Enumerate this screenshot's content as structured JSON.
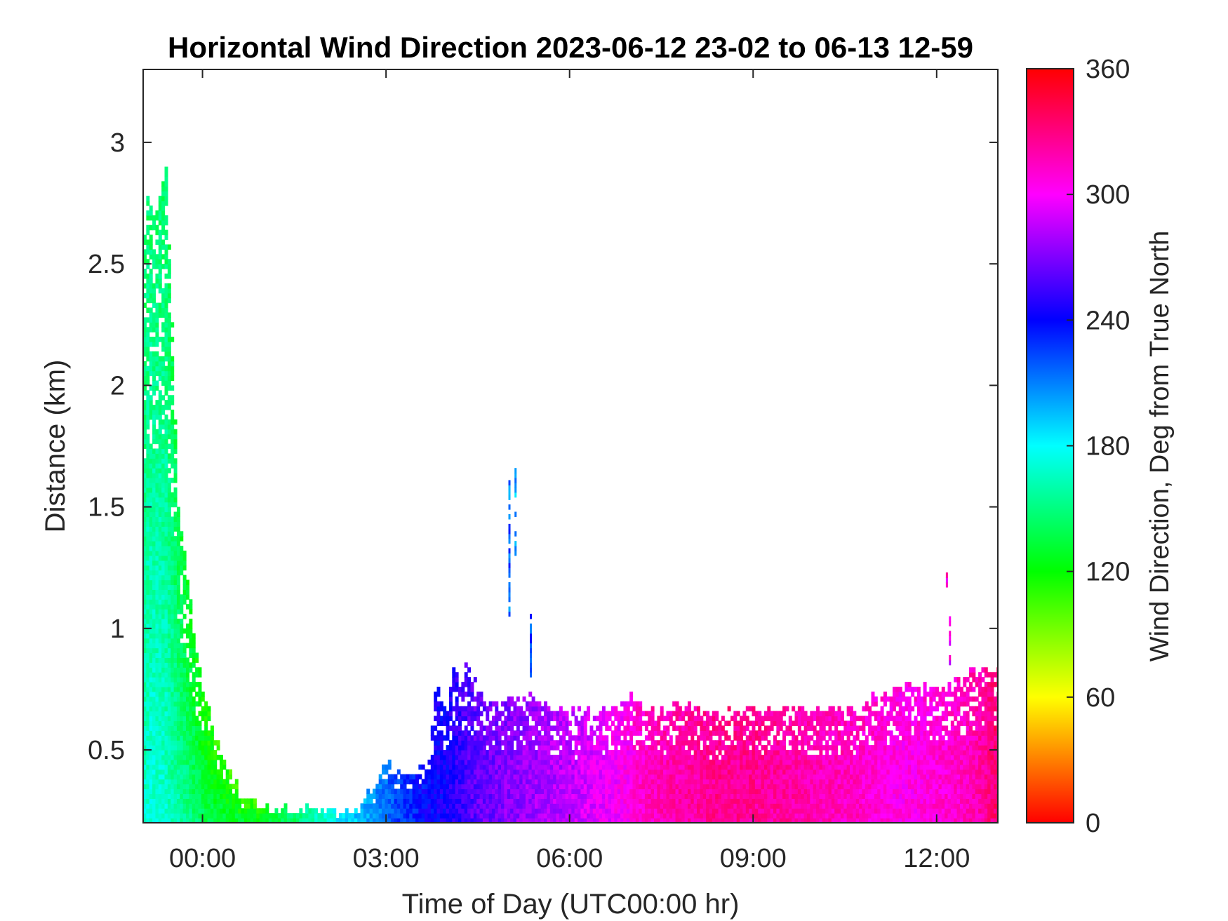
{
  "chart_data": {
    "type": "heatmap",
    "title": "Horizontal Wind Direction 2023-06-12 23-02 to 06-13 12-59",
    "xlabel": "Time of Day (UTC00:00 hr)",
    "ylabel": "Distance (km)",
    "xlim_hours": [
      -0.97,
      13.0
    ],
    "ylim_km": [
      0.2,
      3.3
    ],
    "x_ticks": [
      {
        "hour": 0,
        "label": "00:00"
      },
      {
        "hour": 3,
        "label": "03:00"
      },
      {
        "hour": 6,
        "label": "06:00"
      },
      {
        "hour": 9,
        "label": "09:00"
      },
      {
        "hour": 12,
        "label": "12:00"
      }
    ],
    "y_ticks": [
      {
        "km": 0.5,
        "label": "0.5"
      },
      {
        "km": 1,
        "label": "1"
      },
      {
        "km": 1.5,
        "label": "1.5"
      },
      {
        "km": 2,
        "label": "2"
      },
      {
        "km": 2.5,
        "label": "2.5"
      },
      {
        "km": 3,
        "label": "3"
      }
    ],
    "colorbar": {
      "label": "Wind Direction, Deg from True North",
      "min": 0,
      "max": 360,
      "ticks": [
        {
          "value": 0,
          "label": "0"
        },
        {
          "value": 60,
          "label": "60"
        },
        {
          "value": 120,
          "label": "120"
        },
        {
          "value": 180,
          "label": "180"
        },
        {
          "value": 240,
          "label": "240"
        },
        {
          "value": 300,
          "label": "300"
        },
        {
          "value": 360,
          "label": "360"
        }
      ],
      "colormap": [
        "#ff0000",
        "#ffff00",
        "#00ff00",
        "#00ffff",
        "#0000ff",
        "#ff00ff",
        "#ff0000"
      ]
    },
    "grid": false,
    "missing_value_color": "#ffffff",
    "profile": {
      "hour": [
        -0.97,
        -0.9,
        -0.8,
        -0.7,
        -0.6,
        -0.5,
        -0.4,
        -0.3,
        -0.2,
        -0.1,
        0.0,
        0.1,
        0.2,
        0.3,
        0.5,
        0.7,
        0.9,
        1.1,
        1.3,
        1.5,
        1.7,
        2.0,
        2.3,
        2.6,
        2.8,
        3.0,
        3.2,
        3.5,
        3.7,
        3.8,
        4.0,
        4.1,
        4.2,
        4.3,
        4.5,
        4.6,
        4.8,
        5.0,
        5.2,
        5.4,
        5.6,
        5.8,
        6.0,
        6.2,
        6.5,
        6.8,
        7.0,
        7.1,
        7.3,
        7.5,
        7.8,
        8.0,
        8.2,
        8.4,
        8.6,
        9.0,
        9.5,
        10.0,
        10.5,
        10.8,
        11.0,
        11.3,
        11.6,
        11.9,
        12.1,
        12.3,
        12.5,
        12.7,
        12.9,
        13.0
      ],
      "top_km": [
        2.5,
        2.8,
        2.7,
        2.75,
        2.9,
        2.3,
        1.5,
        1.3,
        1.1,
        0.9,
        0.75,
        0.65,
        0.55,
        0.48,
        0.36,
        0.3,
        0.27,
        0.25,
        0.26,
        0.24,
        0.25,
        0.24,
        0.23,
        0.26,
        0.35,
        0.45,
        0.4,
        0.4,
        0.45,
        0.75,
        0.65,
        0.85,
        0.75,
        0.85,
        0.78,
        0.7,
        0.68,
        0.7,
        0.7,
        0.72,
        0.68,
        0.66,
        0.65,
        0.65,
        0.65,
        0.66,
        0.72,
        0.7,
        0.66,
        0.65,
        0.68,
        0.67,
        0.65,
        0.64,
        0.65,
        0.66,
        0.66,
        0.66,
        0.65,
        0.68,
        0.71,
        0.74,
        0.76,
        0.76,
        0.74,
        0.78,
        0.8,
        0.82,
        0.82,
        0.82
      ],
      "dir_deg": [
        165,
        170,
        172,
        170,
        168,
        162,
        160,
        155,
        150,
        145,
        140,
        138,
        136,
        134,
        132,
        130,
        130,
        135,
        140,
        145,
        155,
        170,
        185,
        195,
        205,
        215,
        225,
        235,
        240,
        242,
        245,
        248,
        252,
        258,
        262,
        265,
        268,
        272,
        275,
        278,
        280,
        283,
        285,
        290,
        295,
        300,
        305,
        310,
        315,
        318,
        320,
        322,
        324,
        326,
        326,
        325,
        322,
        318,
        315,
        312,
        310,
        305,
        305,
        308,
        310,
        312,
        315,
        320,
        330,
        335
      ]
    },
    "isolated_streaks": [
      {
        "hour": 5.0,
        "km_from": 1.05,
        "km_to": 1.6,
        "dir_deg": 215
      },
      {
        "hour": 5.1,
        "km_from": 1.3,
        "km_to": 1.65,
        "dir_deg": 200
      },
      {
        "hour": 5.35,
        "km_from": 0.8,
        "km_to": 1.05,
        "dir_deg": 222
      },
      {
        "hour": 12.2,
        "km_from": 0.85,
        "km_to": 1.05,
        "dir_deg": 300
      },
      {
        "hour": 12.15,
        "km_from": 1.17,
        "km_to": 1.22,
        "dir_deg": 305
      }
    ]
  }
}
